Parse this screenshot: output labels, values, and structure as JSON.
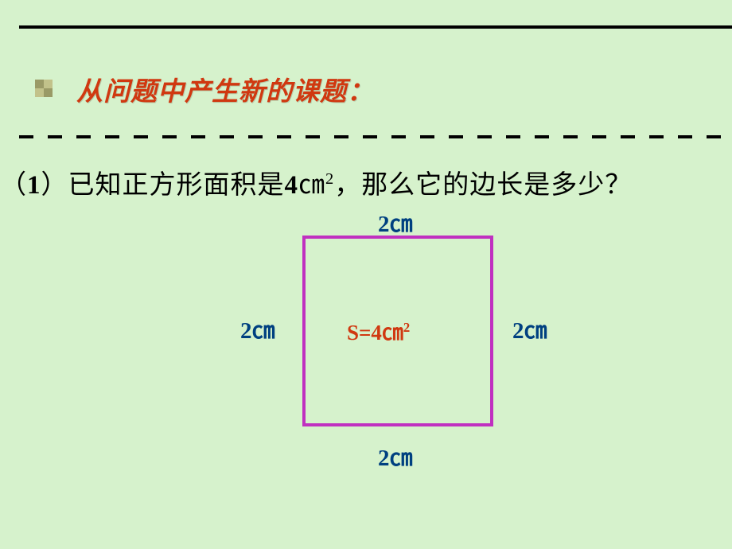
{
  "colors": {
    "background": "#d6f2cc",
    "heading": "#d03810",
    "area_text": "#d03810",
    "side_text": "#004080",
    "square_border": "#c030c0",
    "line": "#000000"
  },
  "heading": "从问题中产生新的课题：",
  "question": {
    "prefix": "（",
    "index": "1",
    "mid1": "）已知正方形面积是",
    "area_val": "4",
    "unit": "㎝",
    "sup": "2",
    "mid2": "，那么它的边长是多少？"
  },
  "diagram": {
    "area_prefix": "S=",
    "area_value": "4",
    "area_unit": "㎝",
    "area_sup": "2",
    "side_value": "2",
    "side_unit": "㎝"
  }
}
